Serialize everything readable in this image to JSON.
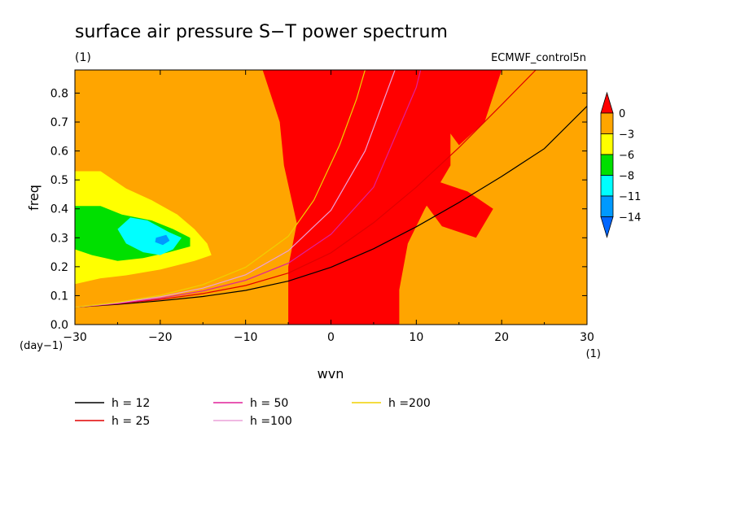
{
  "chart_data": {
    "type": "heatmap",
    "title": "surface air pressure S−T power spectrum",
    "subtitle_left": "(1)",
    "subtitle_right": "ECMWF_control5n",
    "xlabel": "wvn",
    "ylabel": "freq",
    "x_unit": "(1)",
    "y_unit": "(day−1)",
    "xlim": [
      -30,
      30
    ],
    "ylim": [
      0,
      0.88
    ],
    "x_ticks": [
      -30,
      -20,
      -10,
      0,
      10,
      20,
      30
    ],
    "x_tick_labels": [
      "−30",
      "−20",
      "−10",
      "0",
      "10",
      "20",
      "30"
    ],
    "y_ticks": [
      0,
      0.1,
      0.2,
      0.3,
      0.4,
      0.5,
      0.6,
      0.7,
      0.8
    ],
    "y_tick_labels": [
      "0.0",
      "0.1",
      "0.2",
      "0.3",
      "0.4",
      "0.5",
      "0.6",
      "0.7",
      "0.8"
    ],
    "background_level": -3,
    "regions": [
      {
        "level": -6,
        "polygon": [
          [
            -30,
            0.14
          ],
          [
            -30,
            0.53
          ],
          [
            -27,
            0.53
          ],
          [
            -24,
            0.47
          ],
          [
            -21,
            0.43
          ],
          [
            -18,
            0.38
          ],
          [
            -16,
            0.33
          ],
          [
            -14.5,
            0.28
          ],
          [
            -14,
            0.24
          ],
          [
            -16,
            0.22
          ],
          [
            -20,
            0.19
          ],
          [
            -24,
            0.17
          ],
          [
            -27,
            0.16
          ]
        ]
      },
      {
        "level": -8,
        "polygon": [
          [
            -30,
            0.26
          ],
          [
            -30,
            0.41
          ],
          [
            -27,
            0.41
          ],
          [
            -24.5,
            0.38
          ],
          [
            -21,
            0.36
          ],
          [
            -18.5,
            0.33
          ],
          [
            -16.5,
            0.3
          ],
          [
            -16.5,
            0.27
          ],
          [
            -19,
            0.25
          ],
          [
            -22,
            0.23
          ],
          [
            -25,
            0.22
          ],
          [
            -28,
            0.24
          ]
        ]
      },
      {
        "level": -11,
        "polygon": [
          [
            -25,
            0.33
          ],
          [
            -23.5,
            0.37
          ],
          [
            -21.5,
            0.36
          ],
          [
            -19,
            0.32
          ],
          [
            -17.5,
            0.3
          ],
          [
            -18.5,
            0.26
          ],
          [
            -20,
            0.24
          ],
          [
            -22,
            0.25
          ],
          [
            -24,
            0.28
          ]
        ]
      },
      {
        "level": -14,
        "polygon": [
          [
            -20.5,
            0.3
          ],
          [
            -19.3,
            0.31
          ],
          [
            -18.9,
            0.29
          ],
          [
            -19.7,
            0.275
          ],
          [
            -20.6,
            0.285
          ]
        ]
      },
      {
        "level": 0,
        "polygon": [
          [
            -8,
            0.88
          ],
          [
            0,
            0.88
          ],
          [
            8,
            0.88
          ],
          [
            12,
            0.88
          ],
          [
            14,
            0.75
          ],
          [
            14,
            0.55
          ],
          [
            11,
            0.4
          ],
          [
            9,
            0.28
          ],
          [
            8,
            0.12
          ],
          [
            8,
            0
          ],
          [
            -5,
            0
          ],
          [
            -5,
            0.2
          ],
          [
            -4,
            0.35
          ],
          [
            -5.5,
            0.55
          ],
          [
            -6,
            0.7
          ]
        ]
      },
      {
        "level": 0,
        "polygon": [
          [
            12,
            0.88
          ],
          [
            20,
            0.88
          ],
          [
            18,
            0.7
          ],
          [
            15,
            0.62
          ],
          [
            13,
            0.7
          ]
        ]
      },
      {
        "level": 0,
        "polygon": [
          [
            12,
            0.5
          ],
          [
            16,
            0.46
          ],
          [
            19,
            0.4
          ],
          [
            17,
            0.3
          ],
          [
            13,
            0.34
          ],
          [
            11,
            0.42
          ]
        ]
      }
    ],
    "series": [
      {
        "name": "h = 12",
        "color": "#000000",
        "x": [
          -30,
          -25,
          -20,
          -15,
          -10,
          -5,
          0,
          5,
          10,
          15,
          20,
          25,
          30
        ],
        "y": [
          0.06,
          0.07,
          0.082,
          0.097,
          0.118,
          0.15,
          0.198,
          0.262,
          0.338,
          0.422,
          0.512,
          0.608,
          0.755
        ]
      },
      {
        "name": "h = 25",
        "color": "#e00000",
        "x": [
          -30,
          -25,
          -20,
          -15,
          -10,
          -5,
          0,
          5,
          10,
          15,
          20,
          24
        ],
        "y": [
          0.06,
          0.072,
          0.087,
          0.107,
          0.135,
          0.178,
          0.248,
          0.352,
          0.475,
          0.612,
          0.76,
          0.88
        ]
      },
      {
        "name": "h = 50",
        "color": "#e0209a",
        "x": [
          -30,
          -25,
          -20,
          -15,
          -10,
          -5,
          0,
          5,
          10,
          10.5
        ],
        "y": [
          0.06,
          0.073,
          0.091,
          0.116,
          0.153,
          0.212,
          0.312,
          0.475,
          0.82,
          0.88
        ]
      },
      {
        "name": "h =100",
        "color": "#eca0d8",
        "x": [
          -30,
          -25,
          -20,
          -15,
          -10,
          -5,
          0,
          4,
          7.5
        ],
        "y": [
          0.06,
          0.075,
          0.096,
          0.126,
          0.172,
          0.255,
          0.395,
          0.6,
          0.88
        ]
      },
      {
        "name": "h =200",
        "color": "#f0d000",
        "x": [
          -30,
          -25,
          -20,
          -15,
          -10,
          -5,
          -2,
          1,
          3,
          4
        ],
        "y": [
          0.06,
          0.077,
          0.101,
          0.138,
          0.198,
          0.305,
          0.43,
          0.62,
          0.78,
          0.88
        ]
      }
    ],
    "colorbar": {
      "levels": [
        "0",
        "−3",
        "−6",
        "−8",
        "−11",
        "−14"
      ],
      "colors": [
        "#ff0000",
        "#ffa500",
        "#ffff00",
        "#00e000",
        "#00ffff",
        "#0099ff",
        "#0066ff"
      ]
    },
    "legend_placement": "bottom"
  }
}
